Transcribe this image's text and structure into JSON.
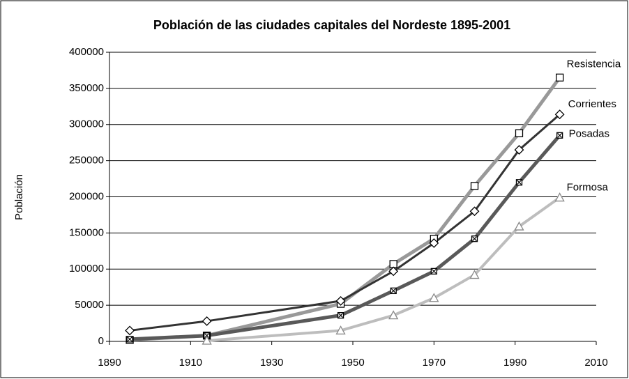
{
  "chart_data": {
    "type": "line",
    "title": "Población de las ciudades capitales del Nordeste 1895-2001",
    "y_label": "Población",
    "x": [
      1895,
      1914,
      1947,
      1960,
      1970,
      1980,
      1991,
      2001
    ],
    "series": [
      {
        "name": "Resistencia",
        "color": "#999999",
        "marker": "square",
        "width": 5,
        "values": [
          2000,
          8000,
          52000,
          107000,
          142000,
          215000,
          288000,
          365000
        ]
      },
      {
        "name": "Corrientes",
        "color": "#333333",
        "marker": "diamond",
        "width": 3,
        "values": [
          15000,
          28000,
          56000,
          97000,
          136000,
          180000,
          265000,
          314000
        ]
      },
      {
        "name": "Posadas",
        "color": "#595959",
        "marker": "xsquare",
        "width": 5,
        "values": [
          3000,
          8000,
          36000,
          70000,
          97000,
          142000,
          220000,
          285000
        ]
      },
      {
        "name": "Formosa",
        "color": "#bdbdbd",
        "marker": "triangle",
        "width": 4,
        "values": [
          null,
          1000,
          15000,
          36000,
          60000,
          92000,
          159000,
          199000
        ]
      }
    ],
    "xlim": [
      1890,
      2010
    ],
    "xticks": [
      1890,
      1910,
      1930,
      1950,
      1970,
      1990,
      2010
    ],
    "ylim": [
      0,
      400000
    ],
    "yticks": [
      0,
      50000,
      100000,
      150000,
      200000,
      250000,
      300000,
      350000,
      400000
    ],
    "grid": true
  }
}
